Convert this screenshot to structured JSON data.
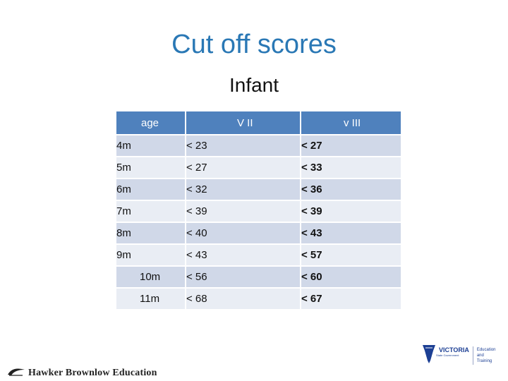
{
  "slide": {
    "title": "Cut off scores",
    "subtitle": "Infant"
  },
  "table": {
    "headers": [
      "age",
      "V II",
      "v III"
    ],
    "rows": [
      {
        "age": "4m",
        "v2": "< 23",
        "v3": "< 27"
      },
      {
        "age": "5m",
        "v2": "< 27",
        "v3": "< 33"
      },
      {
        "age": "6m",
        "v2": "< 32",
        "v3": "< 36"
      },
      {
        "age": "7m",
        "v2": "< 39",
        "v3": "< 39"
      },
      {
        "age": "8m",
        "v2": "< 40",
        "v3": "< 43"
      },
      {
        "age": "9m",
        "v2": "< 43",
        "v3": "< 57"
      },
      {
        "age": "10m",
        "v2": "< 56",
        "v3": "< 60"
      },
      {
        "age": "11m",
        "v2": "< 68",
        "v3": "< 67"
      }
    ]
  },
  "footer": {
    "publisher": "Hawker Brownlow Education",
    "publisher_icon": "swoosh-icon",
    "gov_word": "VICTORIA",
    "gov_sub": "State Government",
    "gov_dept": [
      "Education",
      "and Training"
    ],
    "colors": {
      "title": "#2a78b5",
      "header": "#4f81bd",
      "row_odd": "#d0d8e8",
      "row_even": "#e9edf4",
      "vic_blue": "#1c3f94"
    }
  }
}
